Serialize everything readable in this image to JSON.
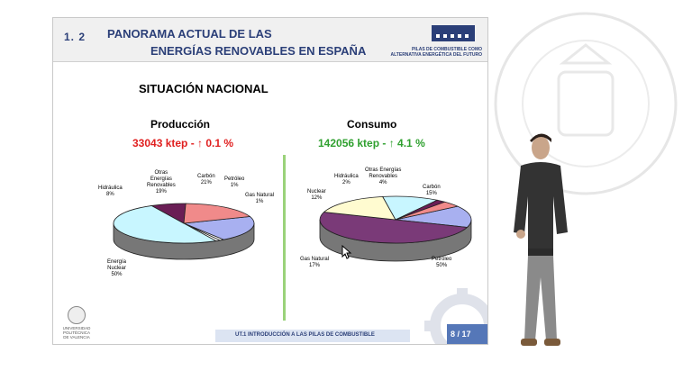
{
  "slide": {
    "section": "1. 2",
    "title_line1": "PANORAMA ACTUAL DE LAS",
    "title_line2": "ENERGÍAS RENOVABLES EN ESPAÑA",
    "header_sub_line1": "PILAS DE COMBUSTIBLE COMO",
    "header_sub_line2": "ALTERNATIVA ENERGÉTICA DEL FUTURO",
    "heading": "SITUACIÓN NACIONAL",
    "footer": "UT.1 INTRODUCCIÓN A LAS PILAS DE COMBUSTIBLE",
    "page": "8 / 17",
    "university_line1": "UNIVERSIDAD",
    "university_line2": "POLITÉCNICA",
    "university_line3": "DE VALENCIA"
  },
  "colors": {
    "title": "#2b3f78",
    "production_stat": "#e02020",
    "consumption_stat": "#2fa02f",
    "divider": "#9ad27a"
  },
  "chart_data": [
    {
      "type": "pie",
      "title": "Producción",
      "subtitle": "33043 ktep - ↑ 0.1 %",
      "categories": [
        "Carbón",
        "Petróleo",
        "Gas Natural",
        "Energía Nuclear",
        "Hidráulica",
        "Otras Energías Renovables"
      ],
      "values": [
        21,
        1,
        1,
        50,
        8,
        19
      ],
      "labels": [
        "Carbón\n21%",
        "Petróleo\n1%",
        "Gas Natural\n1%",
        "Energía\nNuclear\n50%",
        "Hidráulica\n8%",
        "Otras\nEnergías\nRenovables\n19%"
      ],
      "colors": [
        "#a8b0f0",
        "#ffffff",
        "#ffffff",
        "#c8f6ff",
        "#6a1e55",
        "#f08a8a"
      ]
    },
    {
      "type": "pie",
      "title": "Consumo",
      "subtitle": "142056 ktep - ↑ 4.1 %",
      "categories": [
        "Carbón",
        "Petróleo",
        "Gas Natural",
        "Nuclear",
        "Hidráulica",
        "Otras Energías Renovables"
      ],
      "values": [
        15,
        50,
        17,
        12,
        2,
        4
      ],
      "labels": [
        "Carbón\n15%",
        "Petróleo\n50%",
        "Gas Natural\n17%",
        "Nuclear\n12%",
        "Hidráulica\n2%",
        "Otras Energías\nRenovables\n4%"
      ],
      "colors": [
        "#a8b0f0",
        "#7a3a78",
        "#fffbd0",
        "#c8f6ff",
        "#6a1e55",
        "#f08a8a"
      ]
    }
  ]
}
